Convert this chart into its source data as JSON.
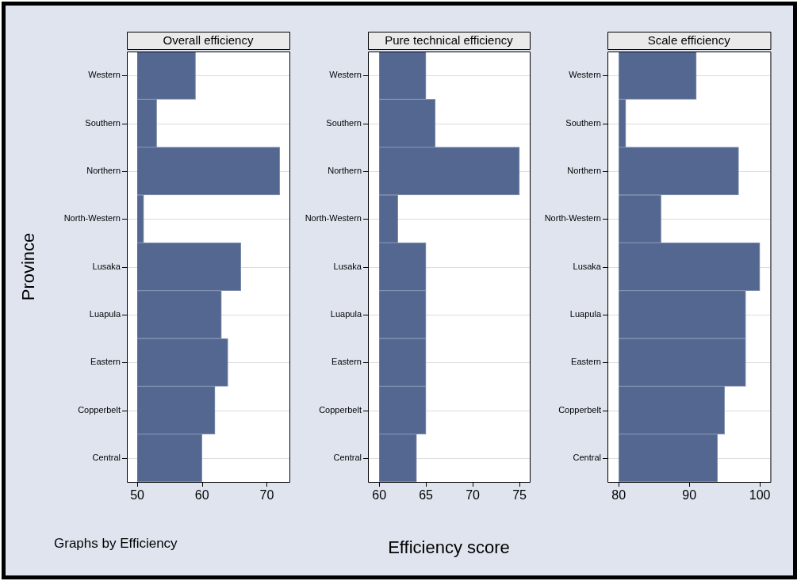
{
  "chart_data": [
    {
      "type": "bar",
      "orientation": "horizontal",
      "title": "Overall efficiency",
      "ylabel": "Province",
      "annotations": [
        "Graphs by Efficiency"
      ],
      "categories": [
        "Western",
        "Southern",
        "Northern",
        "North-Western",
        "Lusaka",
        "Luapula",
        "Eastern",
        "Copperbelt",
        "Central"
      ],
      "base": [
        50,
        50,
        50,
        50,
        50,
        50,
        50,
        50,
        50
      ],
      "values": [
        9,
        3,
        22,
        1,
        16,
        13,
        14,
        12,
        10
      ],
      "color": "#536791",
      "xlim": [
        48.4,
        73.5
      ],
      "xticks": [
        50,
        60,
        70
      ],
      "grid": "y"
    },
    {
      "type": "bar",
      "orientation": "horizontal",
      "title": "Pure technical efficiency",
      "xlabel": "Efficiency score",
      "categories": [
        "Western",
        "Southern",
        "Northern",
        "North-Western",
        "Lusaka",
        "Luapula",
        "Eastern",
        "Copperbelt",
        "Central"
      ],
      "base": [
        60,
        60,
        60,
        60,
        60,
        60,
        60,
        60,
        60
      ],
      "values": [
        5,
        6,
        15,
        2,
        5,
        5,
        5,
        5,
        4
      ],
      "color": "#536791",
      "xlim": [
        58.8,
        76.1
      ],
      "xticks": [
        60,
        65,
        70,
        75
      ],
      "grid": "y"
    },
    {
      "type": "bar",
      "orientation": "horizontal",
      "title": "Scale efficiency",
      "categories": [
        "Western",
        "Southern",
        "Northern",
        "North-Western",
        "Lusaka",
        "Luapula",
        "Eastern",
        "Copperbelt",
        "Central"
      ],
      "base": [
        80,
        80,
        80,
        80,
        80,
        80,
        80,
        80,
        80
      ],
      "values": [
        11,
        1,
        17,
        6,
        20,
        18,
        18,
        15,
        14
      ],
      "color": "#536791",
      "xlim": [
        78.4,
        101.5
      ],
      "xticks": [
        80,
        90,
        100
      ],
      "grid": "y"
    }
  ]
}
